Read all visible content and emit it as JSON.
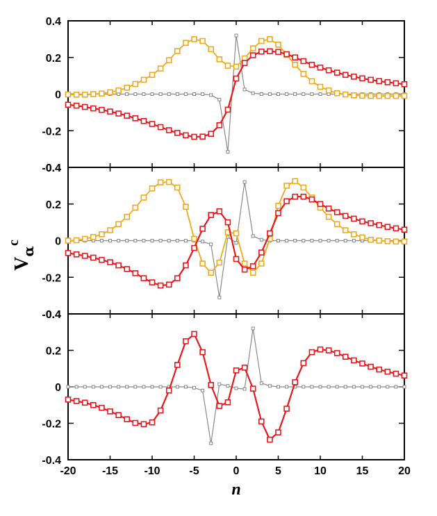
{
  "chart_data": {
    "type": "line",
    "xlabel": "n",
    "ylabel": {
      "main": "V",
      "sub": "α",
      "sup": "c"
    },
    "xlim": [
      -20,
      20
    ],
    "xticks": [
      -20,
      -15,
      -10,
      -5,
      0,
      5,
      10,
      15,
      20
    ],
    "colors": {
      "red": "#e8171c",
      "orange": "#f2a81b",
      "gray": "#888888"
    },
    "panels": [
      {
        "ylim": [
          -0.4,
          0.4
        ],
        "yticks": [
          "-0.4",
          "-0.2",
          "0",
          "0.2",
          "0.4"
        ],
        "series": [
          {
            "color": "red",
            "x": [
              -20,
              -19,
              -18,
              -17,
              -16,
              -15,
              -14,
              -13,
              -12,
              -11,
              -10,
              -9,
              -8,
              -7,
              -6,
              -5,
              -4,
              -3,
              -2,
              -1,
              0,
              1,
              2,
              3,
              4,
              5,
              6,
              7,
              8,
              9,
              10,
              11,
              12,
              13,
              14,
              15,
              16,
              17,
              18,
              19,
              20
            ],
            "y": [
              -0.058,
              -0.063,
              -0.07,
              -0.078,
              -0.086,
              -0.095,
              -0.106,
              -0.118,
              -0.132,
              -0.147,
              -0.163,
              -0.18,
              -0.197,
              -0.212,
              -0.225,
              -0.233,
              -0.232,
              -0.217,
              -0.17,
              -0.085,
              0.085,
              0.17,
              0.212,
              0.232,
              0.234,
              0.23,
              0.218,
              0.2,
              0.18,
              0.16,
              0.145,
              0.13,
              0.117,
              0.105,
              0.095,
              0.086,
              0.078,
              0.071,
              0.065,
              0.059,
              0.054
            ]
          },
          {
            "color": "orange",
            "x": [
              -20,
              -19,
              -18,
              -17,
              -16,
              -15,
              -14,
              -13,
              -12,
              -11,
              -10,
              -9,
              -8,
              -7,
              -6,
              -5,
              -4,
              -3,
              -2,
              -1,
              0,
              1,
              2,
              3,
              4,
              5,
              6,
              7,
              8,
              9,
              10,
              11,
              12,
              13,
              14,
              15,
              16,
              17,
              18,
              19,
              20
            ],
            "y": [
              -0.002,
              -0.003,
              -0.003,
              0,
              0.003,
              0.01,
              0.02,
              0.035,
              0.055,
              0.078,
              0.105,
              0.14,
              0.185,
              0.235,
              0.28,
              0.3,
              0.29,
              0.245,
              0.19,
              0.155,
              0.15,
              0.195,
              0.25,
              0.29,
              0.3,
              0.27,
              0.215,
              0.16,
              0.11,
              0.07,
              0.04,
              0.02,
              0.005,
              -0.002,
              -0.007,
              -0.009,
              -0.01,
              -0.01,
              -0.01,
              -0.01,
              -0.01
            ]
          },
          {
            "color": "gray",
            "x": [
              -20,
              -19,
              -18,
              -17,
              -16,
              -15,
              -14,
              -13,
              -12,
              -11,
              -10,
              -9,
              -8,
              -7,
              -6,
              -5,
              -4,
              -3,
              -2,
              -1,
              0,
              1,
              2,
              3,
              4,
              5,
              6,
              7,
              8,
              9,
              10,
              11,
              12,
              13,
              14,
              15,
              16,
              17,
              18,
              19,
              20
            ],
            "y": [
              0,
              0,
              0,
              0,
              0,
              0,
              0,
              0,
              0,
              0,
              0,
              0,
              0,
              0,
              0,
              0,
              0,
              -0.005,
              -0.03,
              -0.315,
              0.32,
              0.025,
              0.005,
              0,
              0,
              0,
              0,
              0,
              0,
              0,
              0,
              0,
              0,
              0,
              0,
              0,
              0,
              0,
              0,
              0,
              0
            ]
          }
        ]
      },
      {
        "ylim": [
          -0.4,
          0.4
        ],
        "yticks": [
          "-0.4",
          "-0.2",
          "0",
          "0.2",
          "0.4"
        ],
        "series": [
          {
            "color": "red",
            "x": [
              -20,
              -19,
              -18,
              -17,
              -16,
              -15,
              -14,
              -13,
              -12,
              -11,
              -10,
              -9,
              -8,
              -7,
              -6,
              -5,
              -4,
              -3,
              -2,
              -1,
              0,
              1,
              2,
              3,
              4,
              5,
              6,
              7,
              8,
              9,
              10,
              11,
              12,
              13,
              14,
              15,
              16,
              17,
              18,
              19,
              20
            ],
            "y": [
              -0.068,
              -0.075,
              -0.083,
              -0.093,
              -0.105,
              -0.118,
              -0.135,
              -0.155,
              -0.178,
              -0.205,
              -0.228,
              -0.245,
              -0.24,
              -0.205,
              -0.135,
              -0.04,
              0.065,
              0.14,
              0.16,
              0.1,
              -0.1,
              -0.158,
              -0.14,
              -0.065,
              0.04,
              0.15,
              0.215,
              0.24,
              0.24,
              0.225,
              0.2,
              0.175,
              0.155,
              0.135,
              0.12,
              0.105,
              0.095,
              0.085,
              0.075,
              0.067,
              0.06
            ]
          },
          {
            "color": "orange",
            "x": [
              -20,
              -19,
              -18,
              -17,
              -16,
              -15,
              -14,
              -13,
              -12,
              -11,
              -10,
              -9,
              -8,
              -7,
              -6,
              -5,
              -4,
              -3,
              -2,
              -1,
              0,
              1,
              2,
              3,
              4,
              5,
              6,
              7,
              8,
              9,
              10,
              11,
              12,
              13,
              14,
              15,
              16,
              17,
              18,
              19,
              20
            ],
            "y": [
              0,
              0.002,
              0.01,
              0.02,
              0.035,
              0.057,
              0.09,
              0.13,
              0.18,
              0.235,
              0.285,
              0.318,
              0.32,
              0.29,
              0.185,
              0.01,
              -0.125,
              -0.175,
              -0.12,
              0.045,
              0.04,
              -0.125,
              -0.175,
              -0.125,
              0.01,
              0.19,
              0.3,
              0.325,
              0.29,
              0.235,
              0.18,
              0.13,
              0.09,
              0.057,
              0.035,
              0.018,
              0.005,
              0,
              -0.003,
              -0.005,
              -0.005
            ]
          },
          {
            "color": "gray",
            "x": [
              -20,
              -19,
              -18,
              -17,
              -16,
              -15,
              -14,
              -13,
              -12,
              -11,
              -10,
              -9,
              -8,
              -7,
              -6,
              -5,
              -4,
              -3,
              -2,
              -1,
              0,
              1,
              2,
              3,
              4,
              5,
              6,
              7,
              8,
              9,
              10,
              11,
              12,
              13,
              14,
              15,
              16,
              17,
              18,
              19,
              20
            ],
            "y": [
              0,
              0,
              0,
              0,
              0,
              0,
              0,
              0,
              0,
              0,
              0,
              0,
              0,
              0,
              0,
              0,
              -0.005,
              -0.02,
              -0.31,
              0.02,
              -0.012,
              0.32,
              0.025,
              0.005,
              0,
              0,
              0,
              0,
              0,
              0,
              0,
              0,
              0,
              0,
              0,
              0,
              0,
              0,
              0,
              0,
              0
            ]
          }
        ]
      },
      {
        "ylim": [
          -0.4,
          0.4
        ],
        "yticks": [
          "-0.4",
          "-0.2",
          "0",
          "0.2",
          "0.4"
        ],
        "series": [
          {
            "color": "red",
            "x": [
              -20,
              -19,
              -18,
              -17,
              -16,
              -15,
              -14,
              -13,
              -12,
              -11,
              -10,
              -9,
              -8,
              -7,
              -6,
              -5,
              -4,
              -3,
              -2,
              -1,
              0,
              1,
              2,
              3,
              4,
              5,
              6,
              7,
              8,
              9,
              10,
              11,
              12,
              13,
              14,
              15,
              16,
              17,
              18,
              19,
              20
            ],
            "y": [
              -0.07,
              -0.078,
              -0.087,
              -0.1,
              -0.115,
              -0.135,
              -0.155,
              -0.178,
              -0.198,
              -0.205,
              -0.195,
              -0.13,
              -0.02,
              0.12,
              0.25,
              0.29,
              0.19,
              0.01,
              -0.105,
              -0.085,
              0.09,
              0.105,
              -0.01,
              -0.19,
              -0.29,
              -0.25,
              -0.12,
              0.025,
              0.13,
              0.19,
              0.205,
              0.2,
              0.185,
              0.165,
              0.145,
              0.128,
              0.11,
              0.095,
              0.083,
              0.072,
              0.062
            ]
          },
          {
            "color": "gray",
            "x": [
              -20,
              -19,
              -18,
              -17,
              -16,
              -15,
              -14,
              -13,
              -12,
              -11,
              -10,
              -9,
              -8,
              -7,
              -6,
              -5,
              -4,
              -3,
              -2,
              -1,
              0,
              1,
              2,
              3,
              4,
              5,
              6,
              7,
              8,
              9,
              10,
              11,
              12,
              13,
              14,
              15,
              16,
              17,
              18,
              19,
              20
            ],
            "y": [
              0,
              0,
              0,
              0,
              0,
              0,
              0,
              0,
              0,
              0,
              0,
              0,
              0,
              0,
              0,
              -0.005,
              -0.02,
              -0.31,
              0.015,
              0.005,
              -0.008,
              -0.012,
              0.32,
              0.02,
              0.005,
              0,
              0,
              0,
              0,
              0,
              0,
              0,
              0,
              0,
              0,
              0,
              0,
              0,
              0,
              0,
              0
            ]
          }
        ]
      }
    ]
  }
}
